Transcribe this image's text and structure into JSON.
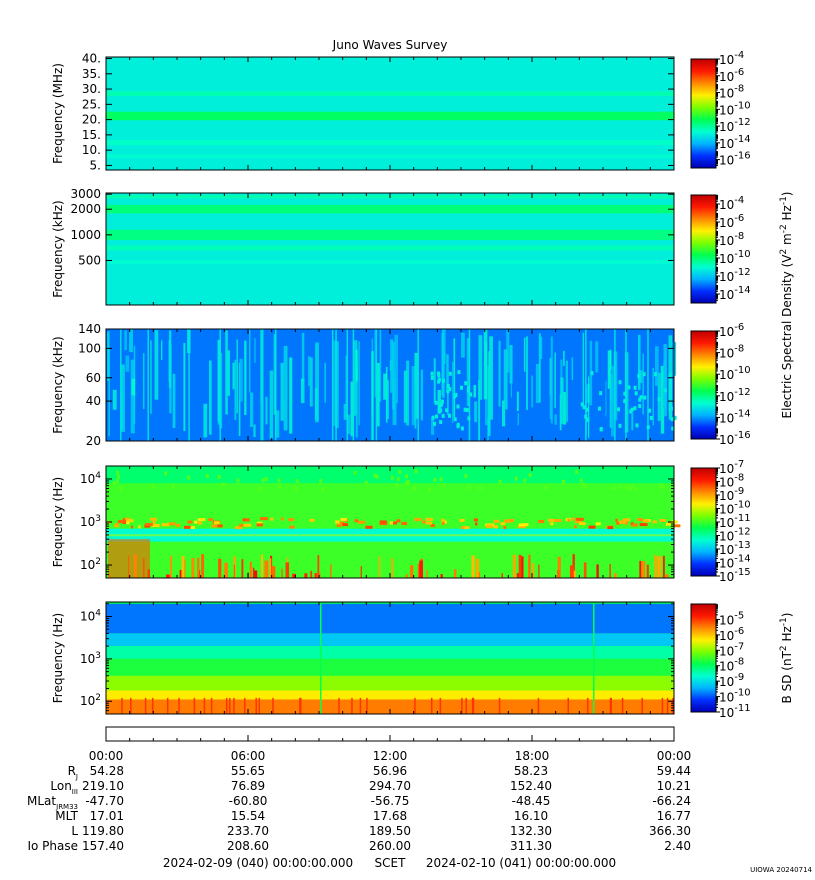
{
  "title": "Juno Waves Survey",
  "colorscale": [
    "#0000b4",
    "#0030ff",
    "#00b4ff",
    "#00ffd0",
    "#00ff50",
    "#7aff00",
    "#fff000",
    "#ff8800",
    "#ff1800",
    "#c00000"
  ],
  "chart_data": [
    {
      "type": "heatmap",
      "panel": "Frequency (MHz)",
      "ylabel": "Frequency (MHz)",
      "yscale": "linear",
      "ylim": [
        3.5,
        40.5
      ],
      "yticks": [
        {
          "value": 5,
          "label": "5."
        },
        {
          "value": 10,
          "label": "10."
        },
        {
          "value": 15,
          "label": "15."
        },
        {
          "value": 20,
          "label": "20."
        },
        {
          "value": 25,
          "label": "25."
        },
        {
          "value": 30,
          "label": "30."
        },
        {
          "value": 35,
          "label": "35."
        },
        {
          "value": 40,
          "label": "40."
        }
      ],
      "background_level": 0.31,
      "bands": [
        {
          "y": 21.2,
          "width": 1.4,
          "level": 0.43
        },
        {
          "y": 28.5,
          "width": 0.8,
          "level": 0.36
        },
        {
          "y": 12.5,
          "width": 0.8,
          "level": 0.34
        },
        {
          "y": 8.0,
          "width": 0.6,
          "level": 0.33
        }
      ],
      "colorbar": {
        "range_exp": [
          -17,
          -4
        ],
        "tick_exps": [
          -16,
          -14,
          -12,
          -10,
          -8,
          -6,
          -4
        ],
        "tick_labels": [
          "-16",
          "-14",
          "-12",
          "-10",
          "-8",
          "-6",
          "-4"
        ]
      }
    },
    {
      "type": "heatmap",
      "panel": "Frequency (kHz)",
      "ylabel": "Frequency (kHz)",
      "yscale": "log",
      "ylim": [
        150,
        3100
      ],
      "yticks": [
        {
          "value": 500,
          "label": "500"
        },
        {
          "value": 1000,
          "label": "1000"
        },
        {
          "value": 2000,
          "label": "2000"
        },
        {
          "value": 3000,
          "label": "3000"
        }
      ],
      "background_level": 0.31,
      "bands": [
        {
          "y": 2000,
          "width": 0.05,
          "level": 0.41
        },
        {
          "y": 1000,
          "width": 0.06,
          "level": 0.4
        },
        {
          "y": 700,
          "width": 0.03,
          "level": 0.35
        },
        {
          "y": 480,
          "width": 0.02,
          "level": 0.33
        },
        {
          "y": 2800,
          "width": 0.02,
          "level": 0.36
        }
      ],
      "colorbar": {
        "range_exp": [
          -15,
          -3
        ],
        "tick_exps": [
          -14,
          -12,
          -10,
          -8,
          -6,
          -4
        ],
        "tick_labels": [
          "-14",
          "-12",
          "-10",
          "-8",
          "-6",
          "-4"
        ]
      }
    },
    {
      "type": "heatmap",
      "panel": "Frequency (kHz) low",
      "ylabel": "Frequency (kHz)",
      "yscale": "log",
      "ylim": [
        20,
        140
      ],
      "yticks": [
        {
          "value": 20,
          "label": "20"
        },
        {
          "value": 40,
          "label": "40"
        },
        {
          "value": 60,
          "label": "60"
        },
        {
          "value": 100,
          "label": "100"
        },
        {
          "value": 140,
          "label": "140"
        }
      ],
      "background_level": 0.17,
      "colorbar": {
        "range_exp": [
          -16,
          -6
        ],
        "tick_exps": [
          -16,
          -14,
          -12,
          -10,
          -8,
          -6
        ],
        "tick_labels": [
          "-16",
          "-14",
          "-12",
          "-10",
          "-8",
          "-6"
        ]
      }
    },
    {
      "type": "heatmap",
      "panel": "Frequency (Hz)",
      "ylabel": "Frequency (Hz)",
      "yscale": "log",
      "ylim": [
        50,
        20000
      ],
      "yticks": [
        {
          "value": 100,
          "label": "10",
          "sup": "2"
        },
        {
          "value": 1000,
          "label": "10",
          "sup": "3"
        },
        {
          "value": 10000,
          "label": "10",
          "sup": "4"
        }
      ],
      "background_level": 0.5,
      "colorbar": {
        "range_exp": [
          -15,
          -7
        ],
        "tick_exps": [
          -15,
          -14,
          -13,
          -12,
          -11,
          -10,
          -9,
          -8,
          -7
        ],
        "tick_labels": [
          "-15",
          "-14",
          "-13",
          "-12",
          "-11",
          "-10",
          "-9",
          "-8",
          "-7"
        ]
      }
    },
    {
      "type": "heatmap",
      "panel": "Frequency (Hz) B",
      "ylabel": "Frequency (Hz)",
      "yscale": "log",
      "ylim": [
        50,
        22000
      ],
      "yticks": [
        {
          "value": 100,
          "label": "10",
          "sup": "2"
        },
        {
          "value": 1000,
          "label": "10",
          "sup": "3"
        },
        {
          "value": 10000,
          "label": "10",
          "sup": "4"
        }
      ],
      "background_level": 0.45,
      "colorbar": {
        "range_exp": [
          -11,
          -4
        ],
        "tick_exps": [
          -11,
          -10,
          -9,
          -8,
          -7,
          -6,
          -5
        ],
        "tick_labels": [
          "-11",
          "-10",
          "-9",
          "-8",
          "-7",
          "-6",
          "-5"
        ]
      }
    }
  ],
  "colorbar_labels": {
    "electric": "Electric Spectral Density (V",
    "electric_sup1": "2",
    "electric_mid": " m",
    "electric_sup2": "-2",
    "electric_mid2": " Hz",
    "electric_sup3": "-1",
    "electric_end": ")",
    "magnetic": "B SD (nT",
    "magnetic_sup1": "2",
    "magnetic_mid": " Hz",
    "magnetic_sup2": "-1",
    "magnetic_end": ")",
    "base": "10"
  },
  "time_axis": {
    "hours_range": [
      0,
      24
    ],
    "tick_hours": [
      0,
      6,
      12,
      18,
      24
    ],
    "tick_labels": [
      "00:00",
      "06:00",
      "12:00",
      "18:00",
      "00:00"
    ]
  },
  "ephemeris": [
    {
      "label": "R",
      "sub": "J",
      "values": [
        "54.28",
        "55.65",
        "56.96",
        "58.23",
        "59.44"
      ]
    },
    {
      "label": "Lon",
      "sub": "III",
      "values": [
        "219.10",
        "76.89",
        "294.70",
        "152.40",
        "10.21"
      ]
    },
    {
      "label": "MLat",
      "sub": "JRM33",
      "values": [
        "-47.70",
        "-60.80",
        "-56.75",
        "-48.45",
        "-66.24"
      ]
    },
    {
      "label": "MLT",
      "sub": "",
      "values": [
        "17.01",
        "15.54",
        "17.68",
        "16.10",
        "16.77"
      ]
    },
    {
      "label": "L",
      "sub": "",
      "values": [
        "119.80",
        "233.70",
        "189.50",
        "132.30",
        "366.30"
      ]
    },
    {
      "label": "Io Phase",
      "sub": "",
      "values": [
        "157.40",
        "208.60",
        "260.00",
        "311.30",
        "2.40"
      ]
    }
  ],
  "footer": {
    "start": "2024-02-09 (040) 00:00:00.000",
    "scet": "SCET",
    "end": "2024-02-10 (041) 00:00:00.000",
    "stamp": "UIOWA 20240714"
  }
}
